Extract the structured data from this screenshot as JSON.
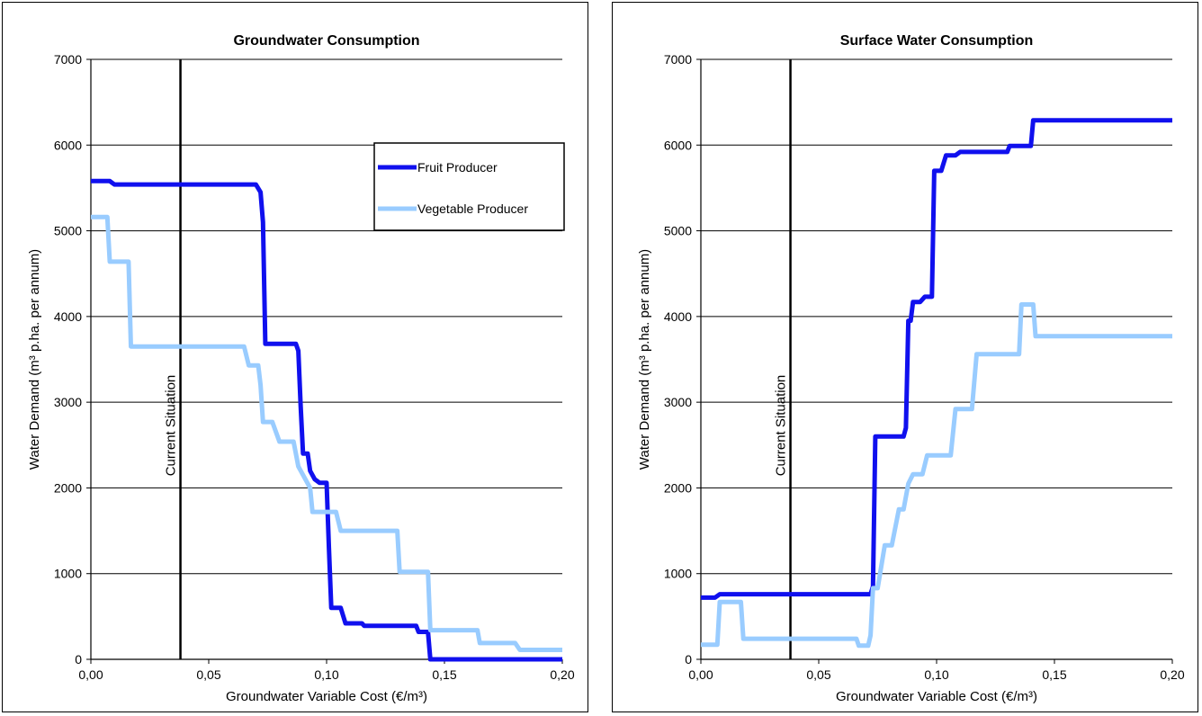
{
  "chart_data": [
    {
      "type": "line",
      "title": "Groundwater Consumption",
      "xlabel": "Groundwater Variable Cost (€/m³)",
      "ylabel": "Water Demand (m³ p.ha. per annum)",
      "xlim": [
        0,
        0.2
      ],
      "ylim": [
        0,
        7000
      ],
      "x_ticks": [
        "0,00",
        "0,05",
        "0,10",
        "0,15",
        "0,20"
      ],
      "y_ticks": [
        "0",
        "1000",
        "2000",
        "3000",
        "4000",
        "5000",
        "6000",
        "7000"
      ],
      "grid": "horizontal",
      "legend": "top-right",
      "annotation": {
        "label": "Current Situation",
        "x": 0.038
      },
      "series": [
        {
          "name": "Fruit Producer",
          "color": "#1010ee",
          "points": [
            [
              0.0,
              5580
            ],
            [
              0.008,
              5580
            ],
            [
              0.01,
              5540
            ],
            [
              0.07,
              5540
            ],
            [
              0.072,
              5450
            ],
            [
              0.073,
              5100
            ],
            [
              0.074,
              3680
            ],
            [
              0.087,
              3680
            ],
            [
              0.088,
              3600
            ],
            [
              0.089,
              2950
            ],
            [
              0.09,
              2400
            ],
            [
              0.092,
              2400
            ],
            [
              0.093,
              2200
            ],
            [
              0.095,
              2100
            ],
            [
              0.097,
              2060
            ],
            [
              0.1,
              2060
            ],
            [
              0.101,
              1300
            ],
            [
              0.102,
              600
            ],
            [
              0.106,
              600
            ],
            [
              0.108,
              420
            ],
            [
              0.115,
              420
            ],
            [
              0.116,
              390
            ],
            [
              0.138,
              390
            ],
            [
              0.139,
              320
            ],
            [
              0.143,
              320
            ],
            [
              0.144,
              0
            ],
            [
              0.2,
              0
            ]
          ]
        },
        {
          "name": "Vegetable Producer",
          "color": "#99ccff",
          "points": [
            [
              0.0,
              5160
            ],
            [
              0.007,
              5160
            ],
            [
              0.008,
              4640
            ],
            [
              0.016,
              4640
            ],
            [
              0.017,
              3650
            ],
            [
              0.065,
              3650
            ],
            [
              0.067,
              3430
            ],
            [
              0.071,
              3430
            ],
            [
              0.072,
              3200
            ],
            [
              0.073,
              2770
            ],
            [
              0.077,
              2770
            ],
            [
              0.08,
              2540
            ],
            [
              0.086,
              2540
            ],
            [
              0.088,
              2250
            ],
            [
              0.093,
              2000
            ],
            [
              0.094,
              1720
            ],
            [
              0.104,
              1720
            ],
            [
              0.106,
              1500
            ],
            [
              0.13,
              1500
            ],
            [
              0.131,
              1020
            ],
            [
              0.143,
              1020
            ],
            [
              0.144,
              340
            ],
            [
              0.164,
              340
            ],
            [
              0.165,
              190
            ],
            [
              0.18,
              190
            ],
            [
              0.182,
              110
            ],
            [
              0.2,
              110
            ]
          ]
        }
      ]
    },
    {
      "type": "line",
      "title": "Surface Water Consumption",
      "xlabel": "Groundwater Variable Cost (€/m³)",
      "ylabel": "Water Demand (m³ p.ha. per annum)",
      "xlim": [
        0,
        0.2
      ],
      "ylim": [
        0,
        7000
      ],
      "x_ticks": [
        "0,00",
        "0,05",
        "0,10",
        "0,15",
        "0,20"
      ],
      "y_ticks": [
        "0",
        "1000",
        "2000",
        "3000",
        "4000",
        "5000",
        "6000",
        "7000"
      ],
      "grid": "horizontal",
      "legend": "none",
      "annotation": {
        "label": "Current Situation",
        "x": 0.038
      },
      "series": [
        {
          "name": "Fruit Producer",
          "color": "#1010ee",
          "points": [
            [
              0.0,
              720
            ],
            [
              0.006,
              720
            ],
            [
              0.008,
              760
            ],
            [
              0.072,
              760
            ],
            [
              0.073,
              850
            ],
            [
              0.074,
              2600
            ],
            [
              0.086,
              2600
            ],
            [
              0.087,
              2700
            ],
            [
              0.088,
              3950
            ],
            [
              0.089,
              3950
            ],
            [
              0.09,
              4170
            ],
            [
              0.093,
              4170
            ],
            [
              0.095,
              4230
            ],
            [
              0.098,
              4230
            ],
            [
              0.099,
              5700
            ],
            [
              0.102,
              5700
            ],
            [
              0.104,
              5880
            ],
            [
              0.108,
              5880
            ],
            [
              0.11,
              5920
            ],
            [
              0.13,
              5920
            ],
            [
              0.131,
              5990
            ],
            [
              0.14,
              5990
            ],
            [
              0.141,
              6290
            ],
            [
              0.2,
              6290
            ]
          ]
        },
        {
          "name": "Vegetable Producer",
          "color": "#99ccff",
          "points": [
            [
              0.0,
              170
            ],
            [
              0.007,
              170
            ],
            [
              0.008,
              670
            ],
            [
              0.017,
              670
            ],
            [
              0.018,
              240
            ],
            [
              0.066,
              240
            ],
            [
              0.067,
              160
            ],
            [
              0.071,
              160
            ],
            [
              0.072,
              280
            ],
            [
              0.073,
              830
            ],
            [
              0.075,
              830
            ],
            [
              0.078,
              1330
            ],
            [
              0.081,
              1330
            ],
            [
              0.084,
              1750
            ],
            [
              0.086,
              1750
            ],
            [
              0.088,
              2050
            ],
            [
              0.09,
              2160
            ],
            [
              0.094,
              2160
            ],
            [
              0.096,
              2380
            ],
            [
              0.106,
              2380
            ],
            [
              0.108,
              2920
            ],
            [
              0.115,
              2920
            ],
            [
              0.117,
              3560
            ],
            [
              0.135,
              3560
            ],
            [
              0.136,
              4140
            ],
            [
              0.141,
              4140
            ],
            [
              0.142,
              3770
            ],
            [
              0.2,
              3770
            ]
          ]
        }
      ]
    }
  ]
}
